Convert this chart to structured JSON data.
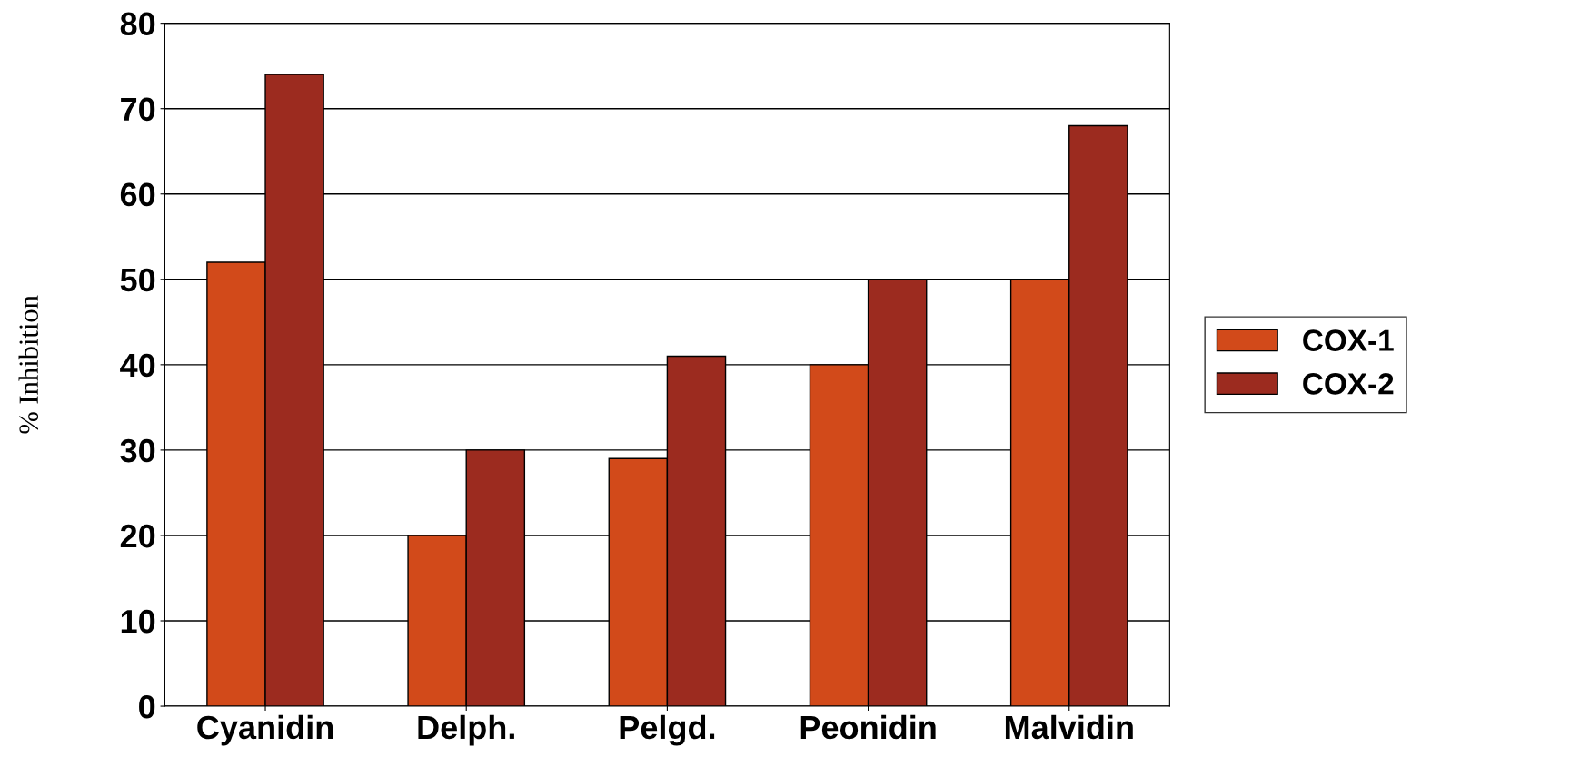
{
  "chart_data": {
    "type": "bar",
    "ylabel": "% Inhibition",
    "categories": [
      "Cyanidin",
      "Delph.",
      "Pelgd.",
      "Peonidin",
      "Malvidin"
    ],
    "series": [
      {
        "name": "COX-1",
        "color": "#d24a1a",
        "values": [
          52,
          20,
          29,
          40,
          50
        ]
      },
      {
        "name": "COX-2",
        "color": "#9c2b1f",
        "values": [
          74,
          30,
          41,
          50,
          68
        ]
      }
    ],
    "ylim": [
      0,
      80
    ],
    "yticks": [
      0,
      10,
      20,
      30,
      40,
      50,
      60,
      70,
      80
    ],
    "grid": "y",
    "legend": "right"
  }
}
